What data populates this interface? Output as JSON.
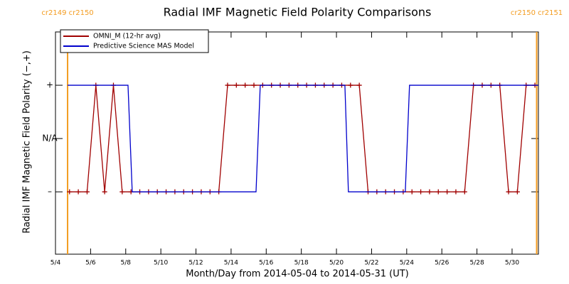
{
  "chart_data": {
    "type": "line",
    "title": "Radial IMF Magnetic Field Polarity Comparisons",
    "xlabel": "Month/Day from 2014-05-04 to 2014-05-31 (UT)",
    "ylabel": "Radial IMF Magnetic Field Polarity (−,+)",
    "xlim": [
      0,
      27.5
    ],
    "ylim": [
      -2.17,
      2
    ],
    "xticks": [
      {
        "value": 0,
        "label": "5/4"
      },
      {
        "value": 2,
        "label": "5/6"
      },
      {
        "value": 4,
        "label": "5/8"
      },
      {
        "value": 6,
        "label": "5/10"
      },
      {
        "value": 8,
        "label": "5/12"
      },
      {
        "value": 10,
        "label": "5/14"
      },
      {
        "value": 12,
        "label": "5/16"
      },
      {
        "value": 14,
        "label": "5/18"
      },
      {
        "value": 16,
        "label": "5/20"
      },
      {
        "value": 18,
        "label": "5/22"
      },
      {
        "value": 20,
        "label": "5/24"
      },
      {
        "value": 22,
        "label": "5/26"
      },
      {
        "value": 24,
        "label": "5/28"
      },
      {
        "value": 26,
        "label": "5/30"
      }
    ],
    "yticks": [
      {
        "value": 1,
        "label": "+"
      },
      {
        "value": 0,
        "label": "N/A"
      },
      {
        "value": -1,
        "label": "–"
      }
    ],
    "legend": "upper left",
    "markers": [
      {
        "x": 0.69,
        "label": "cr2149 cr2150"
      },
      {
        "x": 27.4,
        "label": "cr2150 cr2151"
      }
    ],
    "marker_color": "#f39c20",
    "series": [
      {
        "name": "OMNI_M (12-hr avg)",
        "color": "#a00000",
        "point_marker": "+",
        "x": [
          0.8,
          1.3,
          1.8,
          2.3,
          2.8,
          3.3,
          3.8,
          4.3,
          4.8,
          5.3,
          5.8,
          6.3,
          6.8,
          7.3,
          7.8,
          8.3,
          8.8,
          9.3,
          9.8,
          10.3,
          10.8,
          11.3,
          11.8,
          12.3,
          12.8,
          13.3,
          13.8,
          14.3,
          14.8,
          15.3,
          15.8,
          16.3,
          16.8,
          17.3,
          17.8,
          18.3,
          18.8,
          19.3,
          19.8,
          20.3,
          20.8,
          21.3,
          21.8,
          22.3,
          22.8,
          23.3,
          23.8,
          24.3,
          24.8,
          25.3,
          25.8,
          26.3,
          26.8,
          27.3
        ],
        "values": [
          -1,
          -1,
          -1,
          1,
          -1,
          1,
          -1,
          -1,
          -1,
          -1,
          -1,
          -1,
          -1,
          -1,
          -1,
          -1,
          -1,
          -1,
          1,
          1,
          1,
          1,
          1,
          1,
          1,
          1,
          1,
          1,
          1,
          1,
          1,
          1,
          1,
          1,
          -1,
          -1,
          -1,
          -1,
          -1,
          -1,
          -1,
          -1,
          -1,
          -1,
          -1,
          -1,
          1,
          1,
          1,
          1,
          -1,
          -1,
          1,
          1
        ]
      },
      {
        "name": "Predictive Science MAS Model",
        "color": "#0000cc",
        "x": [
          0.69,
          4.13,
          4.37,
          11.42,
          11.66,
          16.48,
          16.68,
          19.92,
          20.16,
          27.49
        ],
        "values": [
          1,
          1,
          -1,
          -1,
          1,
          1,
          -1,
          -1,
          1,
          1
        ]
      }
    ]
  }
}
